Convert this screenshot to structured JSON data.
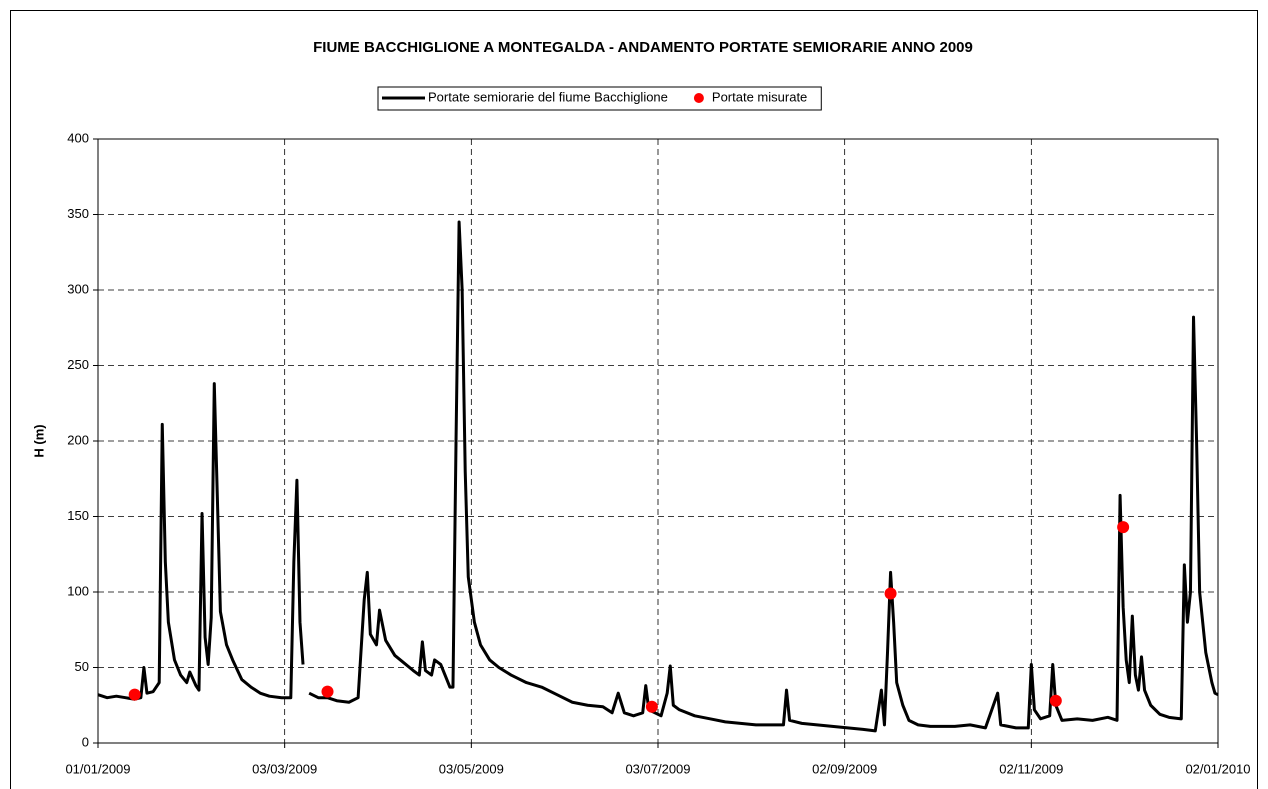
{
  "chart_data": {
    "type": "line",
    "title": "FIUME BACCHIGLIONE A MONTEGALDA - ANDAMENTO PORTATE SEMIORARIE ANNO 2009",
    "y_label": "H (m)",
    "legend": "top-center",
    "grid": true,
    "xlim": [
      "01/01/2009",
      "02/01/2010"
    ],
    "xticks": [
      "01/01/2009",
      "03/03/2009",
      "03/05/2009",
      "03/07/2009",
      "02/09/2009",
      "02/11/2009",
      "02/01/2010"
    ],
    "ylim": [
      0,
      400
    ],
    "yticks": [
      0,
      50,
      100,
      150,
      200,
      250,
      300,
      350,
      400
    ],
    "series": [
      {
        "name": "Portate semiorarie del fiume Bacchiglione",
        "type": "line",
        "color": "#000000",
        "x": [
          "01/01/2009",
          "04/01/2009",
          "07/01/2009",
          "10/01/2009",
          "13/01/2009",
          "15/01/2009",
          "16/01/2009",
          "17/01/2009",
          "19/01/2009",
          "21/01/2009",
          "22/01/2009",
          "23/01/2009",
          "24/01/2009",
          "26/01/2009",
          "28/01/2009",
          "30/01/2009",
          "31/01/2009",
          "02/02/2009",
          "03/02/2009",
          "04/02/2009",
          "05/02/2009",
          "06/02/2009",
          "07/02/2009",
          "08/02/2009",
          "09/02/2009",
          "10/02/2009",
          "12/02/2009",
          "14/02/2009",
          "17/02/2009",
          "20/02/2009",
          "23/02/2009",
          "26/02/2009",
          "02/03/2009",
          "05/03/2009",
          "06/03/2009",
          "07/03/2009",
          "08/03/2009",
          "09/03/2009",
          "10/03/2009",
          "11/03/2009",
          "14/03/2009",
          "17/03/2009",
          "20/03/2009",
          "24/03/2009",
          "27/03/2009",
          "29/03/2009",
          "30/03/2009",
          "31/03/2009",
          "02/04/2009",
          "03/04/2009",
          "05/04/2009",
          "08/04/2009",
          "11/04/2009",
          "14/04/2009",
          "16/04/2009",
          "17/04/2009",
          "18/04/2009",
          "20/04/2009",
          "21/04/2009",
          "23/04/2009",
          "25/04/2009",
          "26/04/2009",
          "27/04/2009",
          "28/04/2009",
          "29/04/2009",
          "30/04/2009",
          "01/05/2009",
          "02/05/2009",
          "04/05/2009",
          "06/05/2009",
          "09/05/2009",
          "12/05/2009",
          "16/05/2009",
          "21/05/2009",
          "26/05/2009",
          "31/05/2009",
          "05/06/2009",
          "10/06/2009",
          "15/06/2009",
          "18/06/2009",
          "20/06/2009",
          "22/06/2009",
          "25/06/2009",
          "28/06/2009",
          "29/06/2009",
          "30/06/2009",
          "02/07/2009",
          "04/07/2009",
          "06/07/2009",
          "07/07/2009",
          "08/07/2009",
          "10/07/2009",
          "15/07/2009",
          "20/07/2009",
          "25/07/2009",
          "30/07/2009",
          "04/08/2009",
          "09/08/2009",
          "13/08/2009",
          "14/08/2009",
          "15/08/2009",
          "19/08/2009",
          "24/08/2009",
          "29/08/2009",
          "03/09/2009",
          "08/09/2009",
          "12/09/2009",
          "14/09/2009",
          "15/09/2009",
          "16/09/2009",
          "17/09/2009",
          "18/09/2009",
          "19/09/2009",
          "21/09/2009",
          "23/09/2009",
          "26/09/2009",
          "30/09/2009",
          "08/10/2009",
          "13/10/2009",
          "18/10/2009",
          "22/10/2009",
          "23/10/2009",
          "28/10/2009",
          "01/11/2009",
          "02/11/2009",
          "03/11/2009",
          "05/11/2009",
          "08/11/2009",
          "09/11/2009",
          "10/11/2009",
          "12/11/2009",
          "17/11/2009",
          "22/11/2009",
          "27/11/2009",
          "30/11/2009",
          "01/12/2009",
          "02/12/2009",
          "03/12/2009",
          "04/12/2009",
          "05/12/2009",
          "06/12/2009",
          "07/12/2009",
          "08/12/2009",
          "09/12/2009",
          "11/12/2009",
          "14/12/2009",
          "17/12/2009",
          "21/12/2009",
          "22/12/2009",
          "23/12/2009",
          "24/12/2009",
          "25/12/2009",
          "26/12/2009",
          "27/12/2009",
          "29/12/2009",
          "31/12/2009",
          "01/01/2010",
          "02/01/2010"
        ],
        "values": [
          32,
          30,
          31,
          30,
          29,
          30,
          50,
          33,
          34,
          40,
          211,
          120,
          80,
          55,
          45,
          40,
          47,
          38,
          35,
          152,
          70,
          52,
          83,
          238,
          163,
          87,
          65,
          55,
          42,
          37,
          33,
          31,
          30,
          30,
          120,
          174,
          80,
          52,
          null,
          33,
          30,
          30,
          28,
          27,
          30,
          95,
          113,
          72,
          65,
          88,
          68,
          58,
          53,
          48,
          45,
          67,
          48,
          45,
          55,
          52,
          42,
          37,
          37,
          200,
          345,
          300,
          180,
          110,
          80,
          65,
          55,
          50,
          45,
          40,
          37,
          32,
          27,
          25,
          24,
          20,
          33,
          20,
          18,
          20,
          38,
          22,
          20,
          18,
          33,
          51,
          25,
          22,
          18,
          16,
          14,
          13,
          12,
          12,
          12,
          35,
          15,
          13,
          12,
          11,
          10,
          9,
          8,
          35,
          12,
          60,
          113,
          80,
          40,
          25,
          15,
          12,
          11,
          11,
          12,
          10,
          33,
          12,
          10,
          10,
          52,
          22,
          16,
          18,
          52,
          25,
          15,
          16,
          15,
          17,
          15,
          164,
          90,
          55,
          40,
          84,
          45,
          35,
          57,
          35,
          25,
          19,
          17,
          16,
          118,
          80,
          100,
          282,
          200,
          100,
          60,
          40,
          33,
          32
        ]
      },
      {
        "name": "Portate misurate",
        "type": "scatter",
        "color": "#ff0000",
        "x": [
          "13/01/2009",
          "17/03/2009",
          "01/07/2009",
          "17/09/2009",
          "10/11/2009",
          "02/12/2009"
        ],
        "values": [
          32,
          34,
          24,
          99,
          28,
          143
        ]
      }
    ]
  }
}
